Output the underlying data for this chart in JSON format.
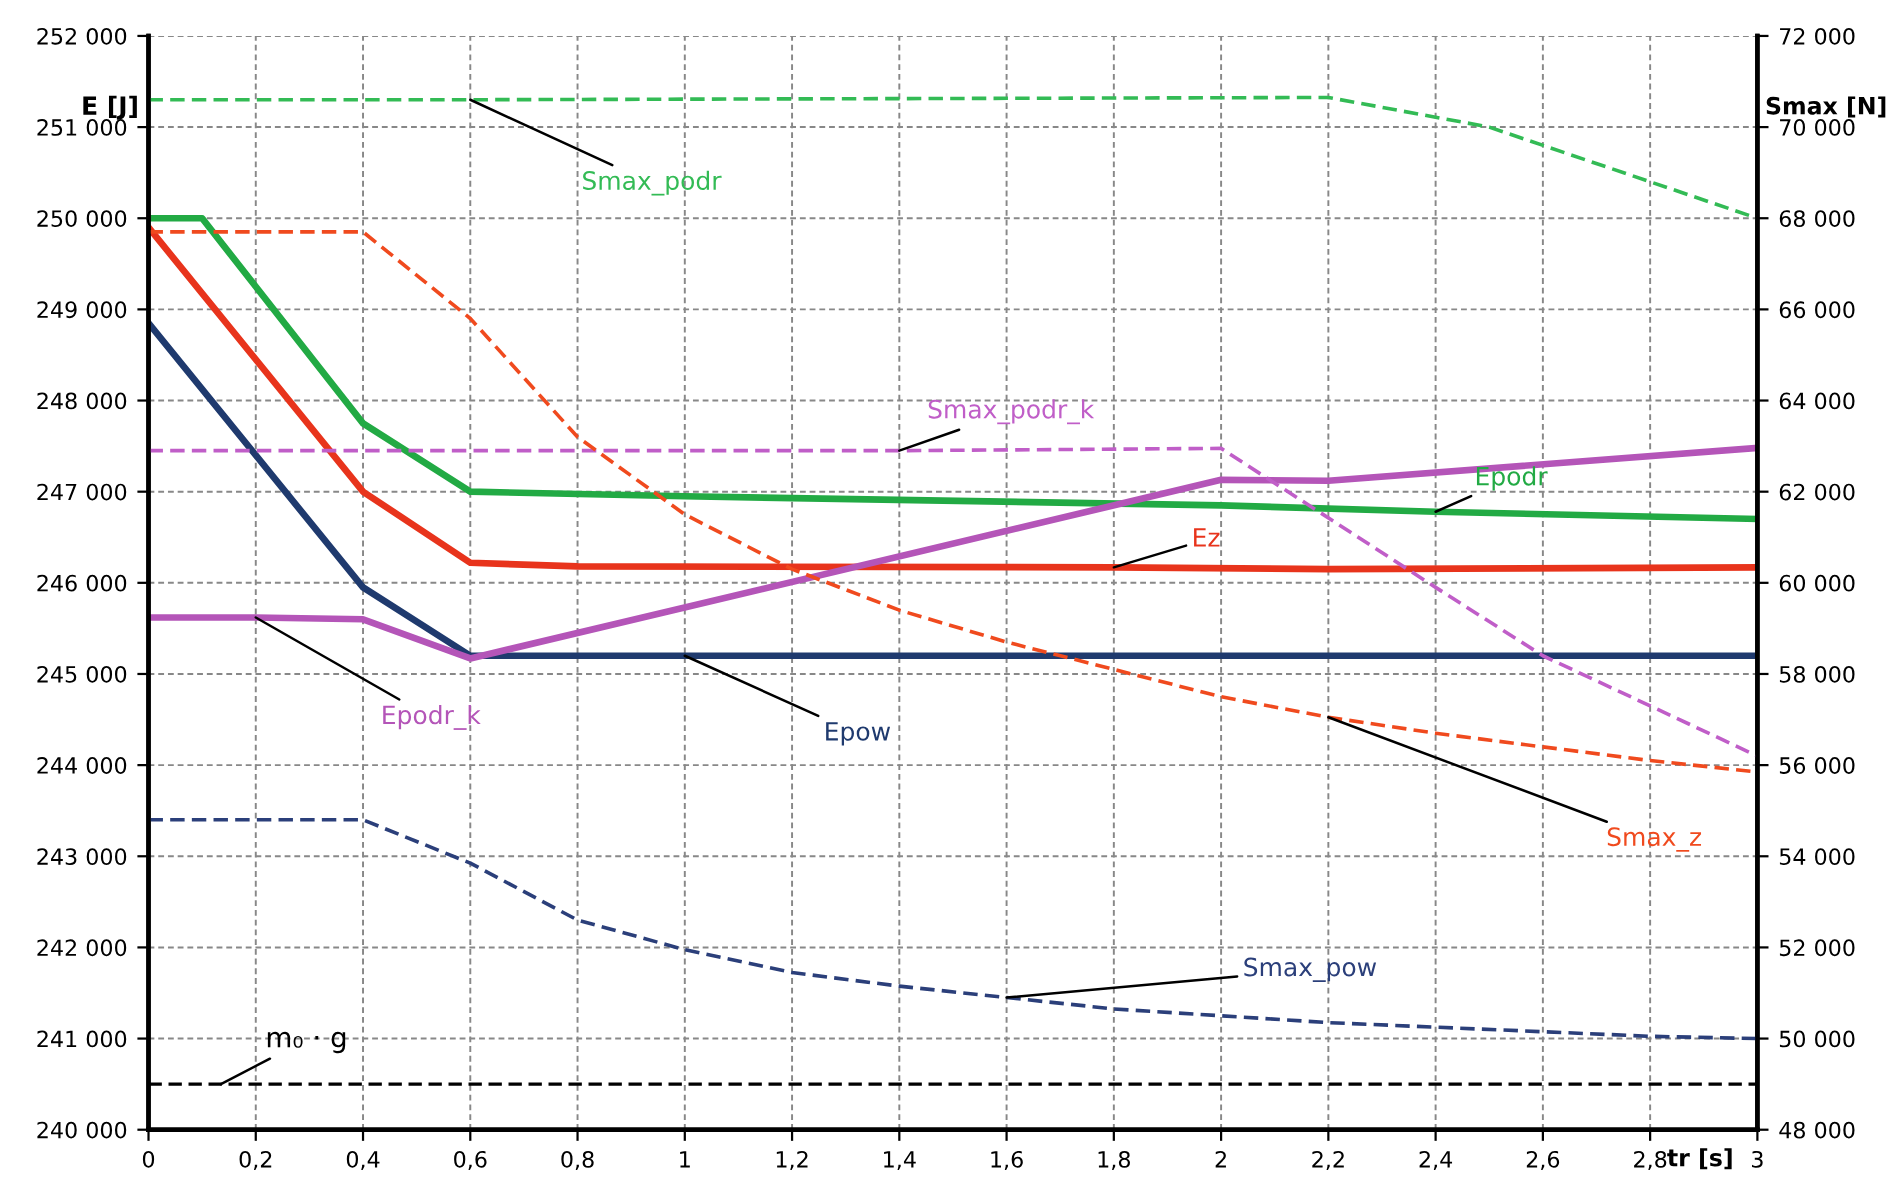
{
  "chart_data": {
    "type": "line",
    "xlabel": "tr [s]",
    "ylabel": "E [J]",
    "y2label": "Smax [N]",
    "xlim": [
      0,
      3
    ],
    "xticks": [
      0,
      {
        "value": 0.2,
        "label": "0,2"
      },
      {
        "value": 0.4,
        "label": "0,4"
      },
      {
        "value": 0.6,
        "label": "0,6"
      },
      {
        "value": 0.8,
        "label": "0,8"
      },
      1,
      {
        "value": 1.2,
        "label": "1,2"
      },
      {
        "value": 1.4,
        "label": "1,4"
      },
      {
        "value": 1.6,
        "label": "1,6"
      },
      {
        "value": 1.8,
        "label": "1,8"
      },
      2,
      {
        "value": 2.2,
        "label": "2,2"
      },
      {
        "value": 2.4,
        "label": "2,4"
      },
      {
        "value": 2.6,
        "label": "2,6"
      },
      {
        "value": 2.8,
        "label": "2,8"
      },
      3
    ],
    "ylim": [
      240000,
      252000
    ],
    "yticks": [
      {
        "value": 240000,
        "label": "240 000"
      },
      {
        "value": 241000,
        "label": "241 000"
      },
      {
        "value": 242000,
        "label": "242 000"
      },
      {
        "value": 243000,
        "label": "243 000"
      },
      {
        "value": 244000,
        "label": "244 000"
      },
      {
        "value": 245000,
        "label": "245 000"
      },
      {
        "value": 246000,
        "label": "246 000"
      },
      {
        "value": 247000,
        "label": "247 000"
      },
      {
        "value": 248000,
        "label": "248 000"
      },
      {
        "value": 249000,
        "label": "249 000"
      },
      {
        "value": 250000,
        "label": "250 000"
      },
      {
        "value": 251000,
        "label": "251 000"
      },
      {
        "value": 252000,
        "label": "252 000"
      }
    ],
    "y2lim": [
      48000,
      72000
    ],
    "y2ticks": [
      {
        "value": 48000,
        "label": "48 000"
      },
      {
        "value": 50000,
        "label": "50 000"
      },
      {
        "value": 52000,
        "label": "52 000"
      },
      {
        "value": 54000,
        "label": "54 000"
      },
      {
        "value": 56000,
        "label": "56 000"
      },
      {
        "value": 58000,
        "label": "58 000"
      },
      {
        "value": 60000,
        "label": "60 000"
      },
      {
        "value": 62000,
        "label": "62 000"
      },
      {
        "value": 64000,
        "label": "64 000"
      },
      {
        "value": 66000,
        "label": "66 000"
      },
      {
        "value": 68000,
        "label": "68 000"
      },
      {
        "value": 70000,
        "label": "70 000"
      },
      {
        "value": 72000,
        "label": "72 000"
      }
    ],
    "grid": true,
    "legend": false,
    "marker": "none",
    "series": [
      {
        "name": "Smax_podr",
        "color": "#33bb55",
        "axis": "y2",
        "line_style": "dashed",
        "x": [
          0,
          0.6,
          2.2,
          2.5,
          3
        ],
        "values": [
          70600,
          70600,
          70650,
          70000,
          68000
        ]
      },
      {
        "name": "Smax_podr_k",
        "color": "#c05ec8",
        "axis": "y2",
        "line_style": "dashed",
        "x": [
          0,
          1.4,
          2,
          2.4,
          2.6,
          2.8,
          3
        ],
        "values": [
          62900,
          62900,
          62950,
          59900,
          58400,
          57300,
          56200
        ]
      },
      {
        "name": "Smax_z",
        "color": "#f04a1e",
        "axis": "y2",
        "line_style": "dashed",
        "x": [
          0,
          0.4,
          0.6,
          0.8,
          1,
          1.2,
          1.4,
          1.6,
          1.8,
          2,
          2.2,
          2.4,
          2.6,
          2.8,
          3
        ],
        "values": [
          67700,
          67700,
          65800,
          63200,
          61500,
          60300,
          59400,
          58700,
          58100,
          57500,
          57050,
          56700,
          56400,
          56100,
          55850
        ]
      },
      {
        "name": "Smax_pow",
        "color": "#2b3f7a",
        "axis": "y2",
        "line_style": "dashed",
        "x": [
          0,
          0.4,
          0.6,
          0.8,
          1,
          1.2,
          1.4,
          1.6,
          1.8,
          2,
          2.2,
          2.4,
          2.6,
          2.8,
          3
        ],
        "values": [
          54800,
          54800,
          53850,
          52600,
          51950,
          51450,
          51150,
          50900,
          50650,
          50500,
          50350,
          50250,
          50150,
          50050,
          50000
        ]
      },
      {
        "name": "Epodr",
        "color": "#22aa44",
        "line_style": "solid",
        "x": [
          0,
          0.1,
          0.4,
          0.6,
          1,
          2,
          2.4,
          3
        ],
        "values": [
          250000,
          250000,
          247750,
          247000,
          246950,
          246850,
          246780,
          246700
        ]
      },
      {
        "name": "Ez",
        "color": "#e8341c",
        "line_style": "solid",
        "x": [
          0,
          0.4,
          0.6,
          0.8,
          1.8,
          2.2,
          3
        ],
        "values": [
          249900,
          247000,
          246220,
          246180,
          246170,
          246150,
          246170
        ]
      },
      {
        "name": "Epow",
        "color": "#1f3a6e",
        "line_style": "solid",
        "x": [
          0,
          0.4,
          0.6,
          1,
          3
        ],
        "values": [
          248850,
          245950,
          245200,
          245200,
          245200
        ]
      },
      {
        "name": "Epodr_k",
        "color": "#b455b8",
        "line_style": "solid",
        "x": [
          0,
          0.2,
          0.4,
          0.6,
          2,
          2.2,
          3
        ],
        "values": [
          245620,
          245620,
          245600,
          245170,
          247130,
          247120,
          247480
        ]
      }
    ],
    "ref_lines": [
      {
        "axis": "y2",
        "value": 49000,
        "label": "m₀ · g",
        "color": "#000000",
        "line_style": "dashed"
      }
    ]
  }
}
